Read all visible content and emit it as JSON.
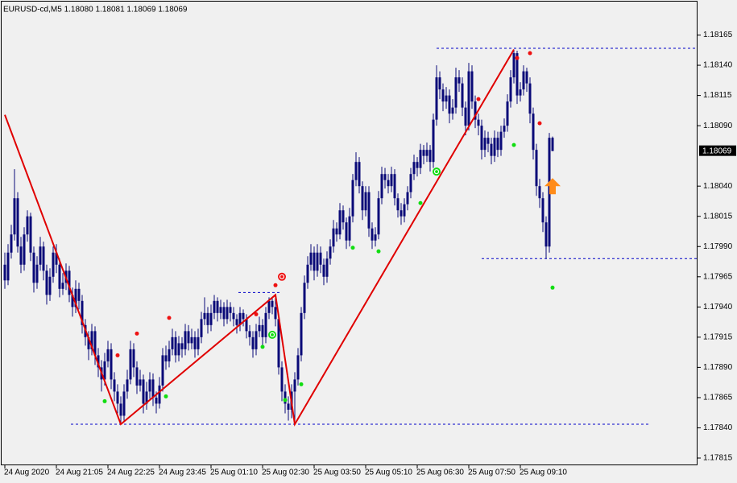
{
  "chart_data": {
    "type": "candlestick",
    "title": "EURUSD-cd,M5  1.18080 1.18081 1.18069 1.18069",
    "candle_color": "#0a0a78",
    "background": "#f0f0f0",
    "xlim": [
      -1.5,
      215
    ],
    "ylim": [
      1.17809,
      1.18194
    ],
    "yticks": [
      1.18165,
      {
        "value": 1.1814,
        "label": "1.18140"
      },
      1.18115,
      {
        "value": 1.1809,
        "label": "1.18090"
      },
      {
        "value": 1.1804,
        "label": "1.18040"
      },
      1.18015,
      {
        "value": 1.1799,
        "label": "1.17990"
      },
      1.17965,
      {
        "value": 1.1794,
        "label": "1.17940"
      },
      1.17915,
      {
        "value": 1.1789,
        "label": "1.17890"
      },
      1.17865,
      {
        "value": 1.1784,
        "label": "1.17840"
      },
      1.17815
    ],
    "categories": [
      "24 Aug 2020",
      null,
      null,
      null,
      null,
      null,
      null,
      null,
      null,
      null,
      null,
      null,
      null,
      null,
      null,
      null,
      "24 Aug 21:05",
      null,
      null,
      null,
      null,
      null,
      null,
      null,
      null,
      null,
      null,
      null,
      null,
      null,
      null,
      null,
      "24 Aug 22:25",
      null,
      null,
      null,
      null,
      null,
      null,
      null,
      null,
      null,
      null,
      null,
      null,
      null,
      null,
      null,
      "24 Aug 23:45",
      null,
      null,
      null,
      null,
      null,
      null,
      null,
      null,
      null,
      null,
      null,
      null,
      null,
      null,
      null,
      "25 Aug 01:10",
      null,
      null,
      null,
      null,
      null,
      null,
      null,
      null,
      null,
      null,
      null,
      null,
      null,
      null,
      null,
      "25 Aug 02:30",
      null,
      null,
      null,
      null,
      null,
      null,
      null,
      null,
      null,
      null,
      null,
      null,
      null,
      null,
      null,
      "25 Aug 03:50",
      null,
      null,
      null,
      null,
      null,
      null,
      null,
      null,
      null,
      null,
      null,
      null,
      null,
      null,
      null,
      "25 Aug 05:10",
      null,
      null,
      null,
      null,
      null,
      null,
      null,
      null,
      null,
      null,
      null,
      null,
      null,
      null,
      null,
      "25 Aug 06:30",
      null,
      null,
      null,
      null,
      null,
      null,
      null,
      null,
      null,
      null,
      null,
      null,
      null,
      null,
      null,
      "25 Aug 07:50",
      null,
      null,
      null,
      null,
      null,
      null,
      null,
      null,
      null,
      null,
      null,
      null,
      null,
      null,
      null,
      "25 Aug 09:10",
      null,
      null,
      null,
      null,
      null,
      null,
      null,
      null,
      null,
      null
    ],
    "candles": [
      [
        1.17975,
        1.17985,
        1.17955,
        1.17962
      ],
      [
        1.17962,
        1.17992,
        1.17958,
        1.17985
      ],
      [
        1.17985,
        1.18008,
        1.1798,
        1.18
      ],
      [
        1.18,
        1.18054,
        1.17995,
        1.1803
      ],
      [
        1.1803,
        1.18035,
        1.17985,
        1.1799
      ],
      [
        1.1799,
        1.17998,
        1.17968,
        1.17975
      ],
      [
        1.17975,
        1.18006,
        1.1797,
        1.18
      ],
      [
        1.18,
        1.1802,
        1.17994,
        1.18015
      ],
      [
        1.18015,
        1.18018,
        1.17978,
        1.17985
      ],
      [
        1.17985,
        1.1799,
        1.17952,
        1.1796
      ],
      [
        1.1796,
        1.17982,
        1.17955,
        1.17975
      ],
      [
        1.17975,
        1.17998,
        1.1797,
        1.1799
      ],
      [
        1.1799,
        1.17994,
        1.17962,
        1.1797
      ],
      [
        1.1797,
        1.17975,
        1.17942,
        1.1795
      ],
      [
        1.1795,
        1.17972,
        1.17945,
        1.17965
      ],
      [
        1.17965,
        1.1799,
        1.1796,
        1.17985
      ],
      [
        1.17985,
        1.17992,
        1.17968,
        1.17975
      ],
      [
        1.17975,
        1.1798,
        1.17948,
        1.17955
      ],
      [
        1.17955,
        1.17968,
        1.1795,
        1.1796
      ],
      [
        1.1796,
        1.17976,
        1.17954,
        1.1797
      ],
      [
        1.1797,
        1.17974,
        1.17944,
        1.1795
      ],
      [
        1.1795,
        1.17956,
        1.17932,
        1.1794
      ],
      [
        1.1794,
        1.17962,
        1.17935,
        1.17955
      ],
      [
        1.17955,
        1.1796,
        1.17938,
        1.17945
      ],
      [
        1.17945,
        1.1795,
        1.17918,
        1.17925
      ],
      [
        1.17925,
        1.1793,
        1.17908,
        1.17915
      ],
      [
        1.17915,
        1.1792,
        1.17896,
        1.17905
      ],
      [
        1.17905,
        1.17926,
        1.179,
        1.1792
      ],
      [
        1.1792,
        1.17924,
        1.17892,
        1.179
      ],
      [
        1.179,
        1.17906,
        1.17882,
        1.1789
      ],
      [
        1.1789,
        1.17896,
        1.1787,
        1.1788
      ],
      [
        1.1788,
        1.17902,
        1.17875,
        1.17895
      ],
      [
        1.17895,
        1.17912,
        1.1789,
        1.17905
      ],
      [
        1.17905,
        1.1791,
        1.17872,
        1.1788
      ],
      [
        1.1788,
        1.17886,
        1.17862,
        1.1787
      ],
      [
        1.1787,
        1.17876,
        1.17852,
        1.1786
      ],
      [
        1.1786,
        1.17866,
        1.17843,
        1.1785
      ],
      [
        1.1785,
        1.17876,
        1.17846,
        1.1787
      ],
      [
        1.1787,
        1.17888,
        1.17864,
        1.1788
      ],
      [
        1.1788,
        1.17912,
        1.17876,
        1.17905
      ],
      [
        1.17905,
        1.1791,
        1.17882,
        1.1789
      ],
      [
        1.1789,
        1.17895,
        1.17868,
        1.17875
      ],
      [
        1.17875,
        1.17888,
        1.1787,
        1.1788
      ],
      [
        1.1788,
        1.17884,
        1.17852,
        1.1786
      ],
      [
        1.1786,
        1.17878,
        1.17855,
        1.1787
      ],
      [
        1.1787,
        1.17886,
        1.17864,
        1.1788
      ],
      [
        1.1788,
        1.17885,
        1.17858,
        1.17865
      ],
      [
        1.17865,
        1.1787,
        1.17852,
        1.1786
      ],
      [
        1.1786,
        1.17882,
        1.17856,
        1.17875
      ],
      [
        1.17875,
        1.17906,
        1.1787,
        1.179
      ],
      [
        1.179,
        1.17908,
        1.17888,
        1.17895
      ],
      [
        1.17895,
        1.17912,
        1.1789,
        1.17905
      ],
      [
        1.17905,
        1.17922,
        1.179,
        1.17915
      ],
      [
        1.17915,
        1.1792,
        1.17894,
        1.179
      ],
      [
        1.179,
        1.17916,
        1.17895,
        1.1791
      ],
      [
        1.1791,
        1.17915,
        1.17898,
        1.17905
      ],
      [
        1.17905,
        1.17926,
        1.179,
        1.1792
      ],
      [
        1.1792,
        1.17925,
        1.17904,
        1.1791
      ],
      [
        1.1791,
        1.17922,
        1.17905,
        1.17915
      ],
      [
        1.17915,
        1.1792,
        1.17898,
        1.17905
      ],
      [
        1.17905,
        1.17922,
        1.179,
        1.17915
      ],
      [
        1.17915,
        1.17936,
        1.1791,
        1.1793
      ],
      [
        1.1793,
        1.17948,
        1.17925,
        1.17935
      ],
      [
        1.17935,
        1.1794,
        1.17918,
        1.17925
      ],
      [
        1.17925,
        1.17942,
        1.1792,
        1.17935
      ],
      [
        1.17935,
        1.1795,
        1.1793,
        1.17945
      ],
      [
        1.17945,
        1.17948,
        1.17928,
        1.17935
      ],
      [
        1.17935,
        1.17946,
        1.1793,
        1.1794
      ],
      [
        1.1794,
        1.17944,
        1.17924,
        1.1793
      ],
      [
        1.1793,
        1.17946,
        1.17926,
        1.1794
      ],
      [
        1.1794,
        1.17944,
        1.17928,
        1.17935
      ],
      [
        1.17935,
        1.1794,
        1.17924,
        1.1793
      ],
      [
        1.1793,
        1.17934,
        1.17918,
        1.17925
      ],
      [
        1.17925,
        1.1794,
        1.1792,
        1.17935
      ],
      [
        1.17935,
        1.17938,
        1.17924,
        1.1793
      ],
      [
        1.1793,
        1.17934,
        1.17914,
        1.1792
      ],
      [
        1.1792,
        1.17925,
        1.17908,
        1.17915
      ],
      [
        1.17915,
        1.1792,
        1.17898,
        1.17905
      ],
      [
        1.17905,
        1.17926,
        1.179,
        1.1792
      ],
      [
        1.1792,
        1.17932,
        1.17915,
        1.17925
      ],
      [
        1.17925,
        1.1793,
        1.17908,
        1.17915
      ],
      [
        1.17915,
        1.1794,
        1.1791,
        1.17935
      ],
      [
        1.17935,
        1.17948,
        1.1793,
        1.17945
      ],
      [
        1.17945,
        1.17948,
        1.17934,
        1.1794
      ],
      [
        1.1794,
        1.1795,
        1.17924,
        1.1793
      ],
      [
        1.1793,
        1.17934,
        1.17884,
        1.1789
      ],
      [
        1.1789,
        1.17895,
        1.17862,
        1.1787
      ],
      [
        1.1787,
        1.17876,
        1.17852,
        1.1786
      ],
      [
        1.1786,
        1.17866,
        1.17846,
        1.17855
      ],
      [
        1.17855,
        1.17876,
        1.17848,
        1.1787
      ],
      [
        1.1787,
        1.17886,
        1.17843,
        1.1788
      ],
      [
        1.1788,
        1.17906,
        1.17875,
        1.179
      ],
      [
        1.179,
        1.1794,
        1.17895,
        1.17935
      ],
      [
        1.17935,
        1.17966,
        1.1793,
        1.1796
      ],
      [
        1.1796,
        1.17982,
        1.17955,
        1.17975
      ],
      [
        1.17975,
        1.17992,
        1.1797,
        1.17985
      ],
      [
        1.17985,
        1.1799,
        1.17962,
        1.1797
      ],
      [
        1.1797,
        1.17992,
        1.17965,
        1.17985
      ],
      [
        1.17985,
        1.1799,
        1.17968,
        1.17975
      ],
      [
        1.17975,
        1.1798,
        1.17958,
        1.17965
      ],
      [
        1.17965,
        1.17986,
        1.1796,
        1.1798
      ],
      [
        1.1798,
        1.17996,
        1.17975,
        1.1799
      ],
      [
        1.1799,
        1.18012,
        1.17985,
        1.18005
      ],
      [
        1.18005,
        1.1801,
        1.17994,
        1.18
      ],
      [
        1.18,
        1.18026,
        1.17996,
        1.1802
      ],
      [
        1.1802,
        1.18024,
        1.18004,
        1.1801
      ],
      [
        1.1801,
        1.18014,
        1.17988,
        1.17995
      ],
      [
        1.17995,
        1.18022,
        1.1799,
        1.18015
      ],
      [
        1.18015,
        1.1805,
        1.1801,
        1.18045
      ],
      [
        1.18045,
        1.18068,
        1.1804,
        1.1806
      ],
      [
        1.1806,
        1.18064,
        1.18034,
        1.1804
      ],
      [
        1.1804,
        1.18044,
        1.18012,
        1.1802
      ],
      [
        1.1802,
        1.1804,
        1.18015,
        1.18035
      ],
      [
        1.18035,
        1.1804,
        1.17998,
        1.18005
      ],
      [
        1.18005,
        1.1801,
        1.17988,
        1.17995
      ],
      [
        1.17995,
        1.18006,
        1.1799,
        1.18
      ],
      [
        1.18,
        1.18036,
        1.17996,
        1.1803
      ],
      [
        1.1803,
        1.18056,
        1.18025,
        1.1805
      ],
      [
        1.1805,
        1.18055,
        1.18038,
        1.18045
      ],
      [
        1.18045,
        1.1805,
        1.18034,
        1.1804
      ],
      [
        1.1804,
        1.18056,
        1.18035,
        1.1805
      ],
      [
        1.1805,
        1.18054,
        1.18024,
        1.1803
      ],
      [
        1.1803,
        1.18034,
        1.18014,
        1.1802
      ],
      [
        1.1802,
        1.18026,
        1.18008,
        1.18015
      ],
      [
        1.18015,
        1.1803,
        1.1801,
        1.18025
      ],
      [
        1.18025,
        1.1804,
        1.1802,
        1.18035
      ],
      [
        1.18035,
        1.18055,
        1.1803,
        1.1805
      ],
      [
        1.1805,
        1.18066,
        1.18045,
        1.1806
      ],
      [
        1.1806,
        1.18064,
        1.18048,
        1.18055
      ],
      [
        1.18055,
        1.18075,
        1.1805,
        1.1807
      ],
      [
        1.1807,
        1.18074,
        1.18058,
        1.18065
      ],
      [
        1.18065,
        1.18076,
        1.1806,
        1.1807
      ],
      [
        1.1807,
        1.18074,
        1.18052,
        1.1806
      ],
      [
        1.1806,
        1.181,
        1.18055,
        1.18095
      ],
      [
        1.18095,
        1.1814,
        1.1809,
        1.1813
      ],
      [
        1.1813,
        1.18135,
        1.18112,
        1.1812
      ],
      [
        1.1812,
        1.18125,
        1.18102,
        1.1811
      ],
      [
        1.1811,
        1.18122,
        1.18104,
        1.18115
      ],
      [
        1.18115,
        1.1812,
        1.18092,
        1.181
      ],
      [
        1.181,
        1.18112,
        1.18095,
        1.18105
      ],
      [
        1.18105,
        1.18138,
        1.181,
        1.1813
      ],
      [
        1.1813,
        1.18136,
        1.18118,
        1.18125
      ],
      [
        1.18125,
        1.1813,
        1.18098,
        1.18105
      ],
      [
        1.18105,
        1.1811,
        1.18082,
        1.1809
      ],
      [
        1.1809,
        1.18142,
        1.18086,
        1.18135
      ],
      [
        1.18135,
        1.1814,
        1.18104,
        1.1811
      ],
      [
        1.1811,
        1.18115,
        1.18088,
        1.18095
      ],
      [
        1.18095,
        1.181,
        1.18082,
        1.1809
      ],
      [
        1.1809,
        1.18095,
        1.18062,
        1.1807
      ],
      [
        1.1807,
        1.18086,
        1.18064,
        1.1808
      ],
      [
        1.1808,
        1.18085,
        1.18068,
        1.18075
      ],
      [
        1.18075,
        1.1808,
        1.18058,
        1.18065
      ],
      [
        1.18065,
        1.18086,
        1.1806,
        1.1808
      ],
      [
        1.1808,
        1.18085,
        1.18064,
        1.1807
      ],
      [
        1.1807,
        1.1809,
        1.18065,
        1.18085
      ],
      [
        1.18085,
        1.18096,
        1.1808,
        1.1809
      ],
      [
        1.1809,
        1.18116,
        1.18085,
        1.1811
      ],
      [
        1.1811,
        1.18136,
        1.18105,
        1.1813
      ],
      [
        1.1813,
        1.18153,
        1.18125,
        1.1815
      ],
      [
        1.1815,
        1.18152,
        1.18108,
        1.18115
      ],
      [
        1.18115,
        1.18126,
        1.1811,
        1.1812
      ],
      [
        1.1812,
        1.1814,
        1.18115,
        1.18135
      ],
      [
        1.18135,
        1.18138,
        1.18118,
        1.18125
      ],
      [
        1.18125,
        1.1813,
        1.18092,
        1.181
      ],
      [
        1.181,
        1.18105,
        1.18062,
        1.1807
      ],
      [
        1.1807,
        1.18075,
        1.18032,
        1.1804
      ],
      [
        1.1804,
        1.18046,
        1.18022,
        1.1803
      ],
      [
        1.1803,
        1.18035,
        1.18002,
        1.1801
      ],
      [
        1.1801,
        1.18015,
        1.1798,
        1.1799
      ],
      [
        1.1799,
        1.18084,
        1.17985,
        1.1808
      ],
      [
        1.1808,
        1.18081,
        1.18069,
        1.18069
      ]
    ],
    "zigzag": {
      "color": "#e00000",
      "x": [
        0,
        36,
        84,
        90,
        158
      ],
      "y": [
        1.18099,
        1.17843,
        1.1795,
        1.17843,
        1.18153
      ]
    },
    "levels": [
      {
        "price": 1.17843,
        "x": [
          20.5,
          200
        ]
      },
      {
        "price": 1.18154,
        "x": [
          134,
          215
        ]
      },
      {
        "price": 1.1798,
        "x": [
          148,
          215
        ]
      },
      {
        "price": 1.17952,
        "x": [
          72.5,
          85.5
        ]
      }
    ],
    "level_color": "#0000c8",
    "markers": [
      {
        "shape": "dot",
        "color": "#ee1111",
        "x": [
          35,
          41,
          51,
          78,
          84,
          147,
          159,
          163,
          166
        ],
        "y": [
          1.179,
          1.17918,
          1.17931,
          1.17934,
          1.17958,
          1.18112,
          1.18146,
          1.1815,
          1.18092
        ]
      },
      {
        "shape": "dot",
        "color": "#11dd11",
        "x": [
          31,
          50,
          80,
          87,
          92,
          108,
          116,
          129,
          158,
          170
        ],
        "y": [
          1.17862,
          1.17866,
          1.17907,
          1.17863,
          1.17876,
          1.17989,
          1.17986,
          1.18026,
          1.18074,
          1.17956
        ]
      },
      {
        "shape": "ring",
        "color": "#ee1111",
        "x": [
          86
        ],
        "y": [
          1.17965
        ]
      },
      {
        "shape": "ring",
        "color": "#11dd11",
        "x": [
          83,
          134
        ],
        "y": [
          1.17917,
          1.18052
        ]
      },
      {
        "shape": "arrow-up",
        "color": "#ff8c1a",
        "x": [
          170
        ],
        "y": [
          1.1804
        ]
      }
    ]
  }
}
